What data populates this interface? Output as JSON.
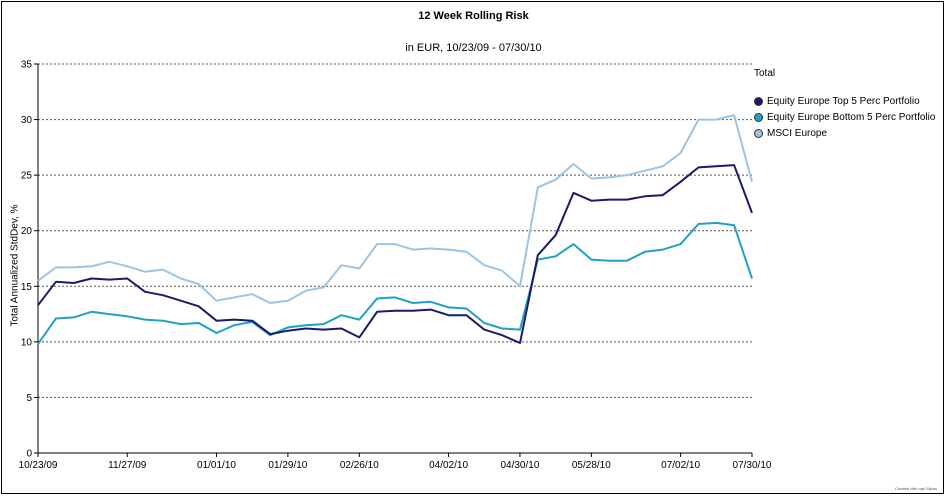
{
  "chart_data": {
    "type": "line",
    "title": "12 Week Rolling Risk",
    "subtitle": "in EUR, 10/23/09 - 07/30/10",
    "ylabel": "Total Annualized StdDev, %",
    "xlabel": "",
    "ylim": [
      0,
      35
    ],
    "yticks": [
      0,
      5,
      10,
      15,
      20,
      25,
      30,
      35
    ],
    "grid": "horizontal-dashed",
    "x_tick_labels": [
      "10/23/09",
      "11/27/09",
      "01/01/10",
      "01/29/10",
      "02/26/10",
      "04/02/10",
      "04/30/10",
      "05/28/10",
      "07/02/10",
      "07/30/10"
    ],
    "x_tick_index": [
      0,
      5,
      10,
      14,
      18,
      23,
      27,
      31,
      36,
      40
    ],
    "x_count": 41,
    "legend_title": "Total",
    "legend_position": "right",
    "series": [
      {
        "name": "Equity Europe Top 5 Perc Portfolio",
        "color": "#1a1a6e",
        "values": [
          13.3,
          15.4,
          15.3,
          15.7,
          15.6,
          15.7,
          14.5,
          14.2,
          13.7,
          13.2,
          11.9,
          12.0,
          11.9,
          10.7,
          11.0,
          11.2,
          11.1,
          11.2,
          10.4,
          12.7,
          12.8,
          12.8,
          12.9,
          12.4,
          12.4,
          11.1,
          10.6,
          9.9,
          17.8,
          19.6,
          23.4,
          22.7,
          22.8,
          22.8,
          23.1,
          23.2,
          24.4,
          25.7,
          25.8,
          25.9,
          21.6
        ]
      },
      {
        "name": "Equity Europe Bottom 5 Perc Portfolio",
        "color": "#1fa0c8",
        "values": [
          9.8,
          12.1,
          12.2,
          12.7,
          12.5,
          12.3,
          12.0,
          11.9,
          11.6,
          11.7,
          10.8,
          11.5,
          11.8,
          10.6,
          11.3,
          11.5,
          11.6,
          12.4,
          12.0,
          13.9,
          14.0,
          13.5,
          13.6,
          13.1,
          13.0,
          11.7,
          11.2,
          11.1,
          17.4,
          17.7,
          18.8,
          17.4,
          17.3,
          17.3,
          18.1,
          18.3,
          18.8,
          20.6,
          20.7,
          20.5,
          15.7
        ]
      },
      {
        "name": "MSCI Europe",
        "color": "#9cc4e4",
        "values": [
          15.5,
          16.7,
          16.7,
          16.8,
          17.2,
          16.8,
          16.3,
          16.5,
          15.7,
          15.2,
          13.7,
          14.0,
          14.3,
          13.5,
          13.7,
          14.6,
          14.9,
          16.9,
          16.6,
          18.8,
          18.8,
          18.3,
          18.4,
          18.3,
          18.1,
          16.9,
          16.4,
          15.0,
          23.9,
          24.6,
          26.0,
          24.7,
          24.8,
          25.0,
          25.4,
          25.8,
          27.0,
          30.0,
          30.0,
          30.4,
          24.4
        ]
      }
    ]
  },
  "footer_note": "Created with mpi Stylus"
}
